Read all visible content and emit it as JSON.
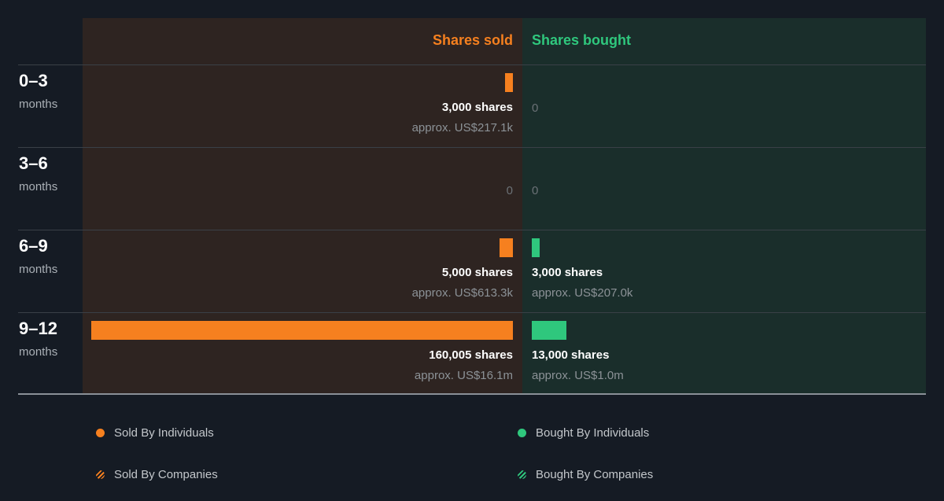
{
  "chart_data": {
    "type": "bar",
    "column_headers": {
      "sold": "Shares sold",
      "bought": "Shares bought"
    },
    "colors": {
      "sold": "#f6801f",
      "bought": "#2fc77d",
      "sold_bg": "#2e2421",
      "bought_bg": "#1a2e2b"
    },
    "rows": [
      {
        "period": "0–3",
        "unit": "months",
        "sold_shares": 3000,
        "sold_label": "3,000 shares",
        "sold_value": "approx. US$217.1k",
        "bought_shares": 0,
        "bought_label": "0",
        "bought_value": ""
      },
      {
        "period": "3–6",
        "unit": "months",
        "sold_shares": 0,
        "sold_label": "0",
        "sold_value": "",
        "bought_shares": 0,
        "bought_label": "0",
        "bought_value": ""
      },
      {
        "period": "6–9",
        "unit": "months",
        "sold_shares": 5000,
        "sold_label": "5,000 shares",
        "sold_value": "approx. US$613.3k",
        "bought_shares": 3000,
        "bought_label": "3,000 shares",
        "bought_value": "approx. US$207.0k"
      },
      {
        "period": "9–12",
        "unit": "months",
        "sold_shares": 160005,
        "sold_label": "160,005 shares",
        "sold_value": "approx. US$16.1m",
        "bought_shares": 13000,
        "bought_label": "13,000 shares",
        "bought_value": "approx. US$1.0m"
      }
    ],
    "legend": [
      {
        "label": "Sold By Individuals",
        "style": "dot",
        "color": "#f6801f"
      },
      {
        "label": "Bought By Individuals",
        "style": "dot",
        "color": "#2fc77d"
      },
      {
        "label": "Sold By Companies",
        "style": "hatch",
        "color": "#f6801f"
      },
      {
        "label": "Bought By Companies",
        "style": "hatch",
        "color": "#2fc77d"
      }
    ]
  }
}
